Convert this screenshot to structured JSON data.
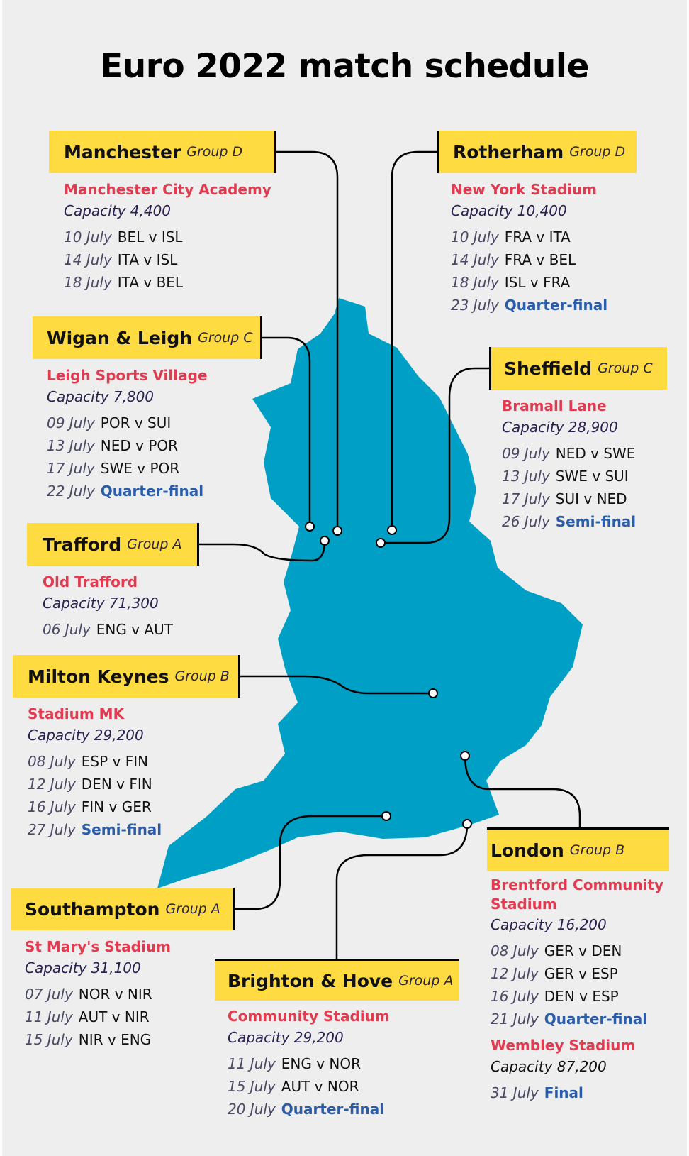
{
  "title": "Euro 2022 match schedule",
  "colors": {
    "background": "#eeeeee",
    "label_box": "#fedc41",
    "venue": "#e23a4f",
    "knockout": "#2a5caa",
    "map": "#00a0c6"
  },
  "locations": [
    {
      "city": "Manchester",
      "group": "Group D",
      "stadiums": [
        {
          "venue": "Manchester City Academy",
          "capacity": "Capacity 4,400",
          "matches": [
            {
              "date": "10 July",
              "fixture": "BEL v ISL"
            },
            {
              "date": "14 July",
              "fixture": "ITA v ISL"
            },
            {
              "date": "18 July",
              "fixture": "ITA v BEL"
            }
          ]
        }
      ]
    },
    {
      "city": "Rotherham",
      "group": "Group D",
      "stadiums": [
        {
          "venue": "New York Stadium",
          "capacity": "Capacity 10,400",
          "matches": [
            {
              "date": "10 July",
              "fixture": "FRA v ITA"
            },
            {
              "date": "14 July",
              "fixture": "FRA v BEL"
            },
            {
              "date": "18 July",
              "fixture": "ISL v FRA"
            },
            {
              "date": "23 July",
              "fixture": "Quarter-final",
              "knockout": true
            }
          ]
        }
      ]
    },
    {
      "city": "Wigan & Leigh",
      "group": "Group C",
      "stadiums": [
        {
          "venue": "Leigh Sports Village",
          "capacity": "Capacity 7,800",
          "matches": [
            {
              "date": "09 July",
              "fixture": "POR v SUI"
            },
            {
              "date": "13 July",
              "fixture": "NED v POR"
            },
            {
              "date": "17 July",
              "fixture": "SWE v POR"
            },
            {
              "date": "22 July",
              "fixture": "Quarter-final",
              "knockout": true
            }
          ]
        }
      ]
    },
    {
      "city": "Sheffield",
      "group": "Group C",
      "stadiums": [
        {
          "venue": "Bramall Lane",
          "capacity": "Capacity 28,900",
          "matches": [
            {
              "date": "09 July",
              "fixture": "NED v SWE"
            },
            {
              "date": "13 July",
              "fixture": "SWE v SUI"
            },
            {
              "date": "17 July",
              "fixture": "SUI v NED"
            },
            {
              "date": "26 July",
              "fixture": "Semi-final",
              "knockout": true
            }
          ]
        }
      ]
    },
    {
      "city": "Trafford",
      "group": "Group A",
      "stadiums": [
        {
          "venue": "Old Trafford",
          "capacity": "Capacity 71,300",
          "matches": [
            {
              "date": "06 July",
              "fixture": "ENG v AUT"
            }
          ]
        }
      ]
    },
    {
      "city": "Milton Keynes",
      "group": "Group B",
      "stadiums": [
        {
          "venue": "Stadium MK",
          "capacity": "Capacity 29,200",
          "matches": [
            {
              "date": "08 July",
              "fixture": "ESP v FIN"
            },
            {
              "date": "12 July",
              "fixture": "DEN v FIN"
            },
            {
              "date": "16 July",
              "fixture": "FIN v GER"
            },
            {
              "date": "27 July",
              "fixture": "Semi-final",
              "knockout": true
            }
          ]
        }
      ]
    },
    {
      "city": "London",
      "group": "Group B",
      "stadiums": [
        {
          "venue": "Brentford Community Stadium",
          "capacity": "Capacity 16,200",
          "matches": [
            {
              "date": "08 July",
              "fixture": "GER v DEN"
            },
            {
              "date": "12 July",
              "fixture": "GER v ESP"
            },
            {
              "date": "16 July",
              "fixture": "DEN v ESP"
            },
            {
              "date": "21 July",
              "fixture": "Quarter-final",
              "knockout": true
            }
          ]
        },
        {
          "venue": "Wembley Stadium",
          "capacity": "Capacity 87,200",
          "matches": [
            {
              "date": "31 July",
              "fixture": "Final",
              "knockout": true
            }
          ]
        }
      ]
    },
    {
      "city": "Southampton",
      "group": "Group A",
      "stadiums": [
        {
          "venue": "St Mary's Stadium",
          "capacity": "Capacity 31,100",
          "matches": [
            {
              "date": "07 July",
              "fixture": "NOR v NIR"
            },
            {
              "date": "11 July",
              "fixture": "AUT v NIR"
            },
            {
              "date": "15 July",
              "fixture": "NIR v ENG"
            }
          ]
        }
      ]
    },
    {
      "city": "Brighton & Hove",
      "group": "Group A",
      "stadiums": [
        {
          "venue": "Community Stadium",
          "capacity": "Capacity 29,200",
          "matches": [
            {
              "date": "11 July",
              "fixture": "ENG v NOR"
            },
            {
              "date": "15 July",
              "fixture": "AUT v NOR"
            },
            {
              "date": "20 July",
              "fixture": "Quarter-final",
              "knockout": true
            }
          ]
        }
      ]
    }
  ]
}
